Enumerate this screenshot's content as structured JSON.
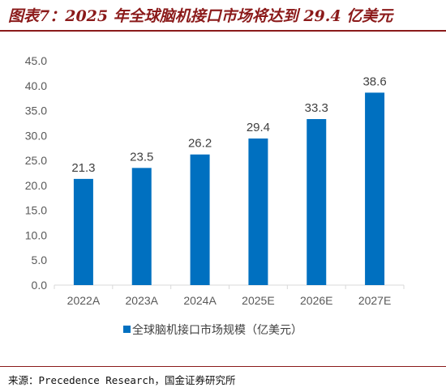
{
  "header": {
    "title": "图表7：2025 年全球脑机接口市场将达到 29.4 亿美元"
  },
  "footer": {
    "source": "来源：Precedence Research，国金证券研究所"
  },
  "colors": {
    "bar": "#0070c0",
    "title": "#8b1a1a"
  },
  "chart_data": {
    "type": "bar",
    "title": "图表7：2025 年全球脑机接口市场将达到 29.4 亿美元",
    "categories": [
      "2022A",
      "2023A",
      "2024A",
      "2025E",
      "2026E",
      "2027E"
    ],
    "series": [
      {
        "name": "全球脑机接口市场规模（亿美元）",
        "values": [
          21.3,
          23.5,
          26.2,
          29.4,
          33.3,
          38.6
        ]
      }
    ],
    "data_labels": [
      "21.3",
      "23.5",
      "26.2",
      "29.4",
      "33.3",
      "38.6"
    ],
    "y_ticks": [
      "0.0",
      "5.0",
      "10.0",
      "15.0",
      "20.0",
      "25.0",
      "30.0",
      "35.0",
      "40.0",
      "45.0"
    ],
    "ylim": [
      0,
      45
    ],
    "xlabel": "",
    "ylabel": "",
    "grid": false,
    "legend_position": "bottom"
  }
}
